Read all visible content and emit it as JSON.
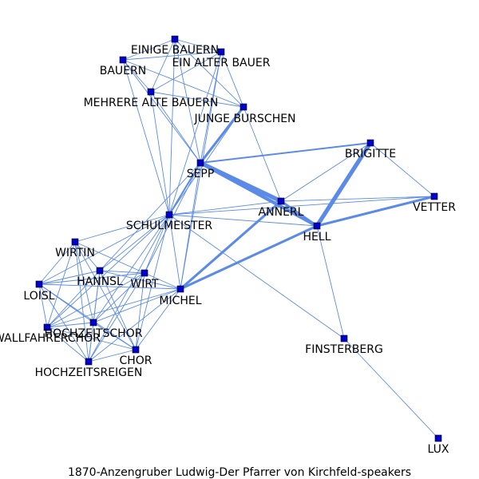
{
  "caption": "1870-Anzengruber_Ludwig-Der_Pfarrer_von_Kirchfeld-speakers",
  "style": {
    "node_color": "#0000cc",
    "node_border": "#000000",
    "edge_color": "#5b8be6"
  },
  "nodes": [
    {
      "id": "EINIGE_BAUERN",
      "label": "EINIGE BAUERN"
    },
    {
      "id": "EIN_ALTER_BAUER",
      "label": "EIN ALTER BAUER"
    },
    {
      "id": "BAUERN",
      "label": "BAUERN"
    },
    {
      "id": "MEHRERE_ALTE_BAUERN",
      "label": "MEHRERE ALTE BAUERN"
    },
    {
      "id": "JUNGE_BURSCHEN",
      "label": "JUNGE BURSCHEN"
    },
    {
      "id": "SEPP",
      "label": "SEPP"
    },
    {
      "id": "BRIGITTE",
      "label": "BRIGITTE"
    },
    {
      "id": "ANNERL",
      "label": "ANNERL"
    },
    {
      "id": "VETTER",
      "label": "VETTER"
    },
    {
      "id": "HELL",
      "label": "HELL"
    },
    {
      "id": "SCHULMEISTER",
      "label": "SCHULMEISTER"
    },
    {
      "id": "WIRTIN",
      "label": "WIRTIN"
    },
    {
      "id": "HANNSL",
      "label": "HANNSL"
    },
    {
      "id": "WIRT",
      "label": "WIRT"
    },
    {
      "id": "LOISL",
      "label": "LOISL"
    },
    {
      "id": "MICHEL",
      "label": "MICHEL"
    },
    {
      "id": "HOCHZEITSCHOR",
      "label": "HOCHZEITSCHOR"
    },
    {
      "id": "WALLFAHRERCHOR",
      "label": "WALLFAHRERCHOR"
    },
    {
      "id": "CHOR",
      "label": "CHOR"
    },
    {
      "id": "HOCHZEITSREIGEN",
      "label": "HOCHZEITSREIGEN"
    },
    {
      "id": "FINSTERBERG",
      "label": "FINSTERBERG"
    },
    {
      "id": "LUX",
      "label": "LUX"
    }
  ],
  "edges": [
    {
      "source": "EINIGE_BAUERN",
      "target": "EIN_ALTER_BAUER",
      "weight": 1
    },
    {
      "source": "EINIGE_BAUERN",
      "target": "BAUERN",
      "weight": 1
    },
    {
      "source": "EINIGE_BAUERN",
      "target": "MEHRERE_ALTE_BAUERN",
      "weight": 1
    },
    {
      "source": "EINIGE_BAUERN",
      "target": "JUNGE_BURSCHEN",
      "weight": 1
    },
    {
      "source": "EINIGE_BAUERN",
      "target": "SEPP",
      "weight": 1
    },
    {
      "source": "EINIGE_BAUERN",
      "target": "SCHULMEISTER",
      "weight": 1
    },
    {
      "source": "EIN_ALTER_BAUER",
      "target": "BAUERN",
      "weight": 1
    },
    {
      "source": "EIN_ALTER_BAUER",
      "target": "MEHRERE_ALTE_BAUERN",
      "weight": 1
    },
    {
      "source": "EIN_ALTER_BAUER",
      "target": "JUNGE_BURSCHEN",
      "weight": 1
    },
    {
      "source": "EIN_ALTER_BAUER",
      "target": "SEPP",
      "weight": 1
    },
    {
      "source": "EIN_ALTER_BAUER",
      "target": "SCHULMEISTER",
      "weight": 1
    },
    {
      "source": "EIN_ALTER_BAUER",
      "target": "MICHEL",
      "weight": 1
    },
    {
      "source": "BAUERN",
      "target": "MEHRERE_ALTE_BAUERN",
      "weight": 1
    },
    {
      "source": "BAUERN",
      "target": "JUNGE_BURSCHEN",
      "weight": 1
    },
    {
      "source": "BAUERN",
      "target": "SEPP",
      "weight": 1
    },
    {
      "source": "BAUERN",
      "target": "SCHULMEISTER",
      "weight": 1
    },
    {
      "source": "MEHRERE_ALTE_BAUERN",
      "target": "JUNGE_BURSCHEN",
      "weight": 1
    },
    {
      "source": "MEHRERE_ALTE_BAUERN",
      "target": "SEPP",
      "weight": 1
    },
    {
      "source": "MEHRERE_ALTE_BAUERN",
      "target": "SCHULMEISTER",
      "weight": 1
    },
    {
      "source": "JUNGE_BURSCHEN",
      "target": "SEPP",
      "weight": 3
    },
    {
      "source": "JUNGE_BURSCHEN",
      "target": "SCHULMEISTER",
      "weight": 1
    },
    {
      "source": "JUNGE_BURSCHEN",
      "target": "ANNERL",
      "weight": 1
    },
    {
      "source": "SEPP",
      "target": "ANNERL",
      "weight": 5
    },
    {
      "source": "SEPP",
      "target": "HELL",
      "weight": 4
    },
    {
      "source": "SEPP",
      "target": "BRIGITTE",
      "weight": 2
    },
    {
      "source": "SEPP",
      "target": "SCHULMEISTER",
      "weight": 2
    },
    {
      "source": "SEPP",
      "target": "MICHEL",
      "weight": 1
    },
    {
      "source": "SEPP",
      "target": "WIRT",
      "weight": 1
    },
    {
      "source": "SEPP",
      "target": "HANNSL",
      "weight": 1
    },
    {
      "source": "BRIGITTE",
      "target": "HELL",
      "weight": 5
    },
    {
      "source": "BRIGITTE",
      "target": "ANNERL",
      "weight": 1
    },
    {
      "source": "BRIGITTE",
      "target": "VETTER",
      "weight": 1
    },
    {
      "source": "ANNERL",
      "target": "HELL",
      "weight": 3
    },
    {
      "source": "ANNERL",
      "target": "VETTER",
      "weight": 1
    },
    {
      "source": "ANNERL",
      "target": "MICHEL",
      "weight": 3
    },
    {
      "source": "ANNERL",
      "target": "SCHULMEISTER",
      "weight": 1
    },
    {
      "source": "VETTER",
      "target": "HELL",
      "weight": 3
    },
    {
      "source": "VETTER",
      "target": "SCHULMEISTER",
      "weight": 1
    },
    {
      "source": "HELL",
      "target": "MICHEL",
      "weight": 3
    },
    {
      "source": "HELL",
      "target": "SCHULMEISTER",
      "weight": 1
    },
    {
      "source": "HELL",
      "target": "FINSTERBERG",
      "weight": 1
    },
    {
      "source": "SCHULMEISTER",
      "target": "WIRTIN",
      "weight": 1
    },
    {
      "source": "SCHULMEISTER",
      "target": "HANNSL",
      "weight": 1
    },
    {
      "source": "SCHULMEISTER",
      "target": "WIRT",
      "weight": 1
    },
    {
      "source": "SCHULMEISTER",
      "target": "LOISL",
      "weight": 1
    },
    {
      "source": "SCHULMEISTER",
      "target": "MICHEL",
      "weight": 1
    },
    {
      "source": "SCHULMEISTER",
      "target": "FINSTERBERG",
      "weight": 1
    },
    {
      "source": "SCHULMEISTER",
      "target": "HOCHZEITSCHOR",
      "weight": 1
    },
    {
      "source": "SCHULMEISTER",
      "target": "CHOR",
      "weight": 1
    },
    {
      "source": "SCHULMEISTER",
      "target": "HOCHZEITSREIGEN",
      "weight": 1
    },
    {
      "source": "SCHULMEISTER",
      "target": "WALLFAHRERCHOR",
      "weight": 1
    },
    {
      "source": "WIRTIN",
      "target": "HANNSL",
      "weight": 1
    },
    {
      "source": "WIRTIN",
      "target": "WIRT",
      "weight": 1
    },
    {
      "source": "WIRTIN",
      "target": "LOISL",
      "weight": 1
    },
    {
      "source": "WIRTIN",
      "target": "HOCHZEITSCHOR",
      "weight": 1
    },
    {
      "source": "WIRTIN",
      "target": "WALLFAHRERCHOR",
      "weight": 1
    },
    {
      "source": "WIRTIN",
      "target": "CHOR",
      "weight": 1
    },
    {
      "source": "WIRTIN",
      "target": "HOCHZEITSREIGEN",
      "weight": 1
    },
    {
      "source": "HANNSL",
      "target": "WIRT",
      "weight": 1
    },
    {
      "source": "HANNSL",
      "target": "LOISL",
      "weight": 1
    },
    {
      "source": "HANNSL",
      "target": "MICHEL",
      "weight": 1
    },
    {
      "source": "HANNSL",
      "target": "HOCHZEITSCHOR",
      "weight": 1
    },
    {
      "source": "HANNSL",
      "target": "WALLFAHRERCHOR",
      "weight": 1
    },
    {
      "source": "HANNSL",
      "target": "CHOR",
      "weight": 1
    },
    {
      "source": "HANNSL",
      "target": "HOCHZEITSREIGEN",
      "weight": 1
    },
    {
      "source": "WIRT",
      "target": "LOISL",
      "weight": 1
    },
    {
      "source": "WIRT",
      "target": "MICHEL",
      "weight": 1
    },
    {
      "source": "WIRT",
      "target": "HOCHZEITSCHOR",
      "weight": 1
    },
    {
      "source": "WIRT",
      "target": "WALLFAHRERCHOR",
      "weight": 1
    },
    {
      "source": "WIRT",
      "target": "CHOR",
      "weight": 1
    },
    {
      "source": "WIRT",
      "target": "HOCHZEITSREIGEN",
      "weight": 1
    },
    {
      "source": "LOISL",
      "target": "MICHEL",
      "weight": 1
    },
    {
      "source": "LOISL",
      "target": "HOCHZEITSCHOR",
      "weight": 1
    },
    {
      "source": "LOISL",
      "target": "WALLFAHRERCHOR",
      "weight": 1
    },
    {
      "source": "LOISL",
      "target": "CHOR",
      "weight": 1
    },
    {
      "source": "LOISL",
      "target": "HOCHZEITSREIGEN",
      "weight": 1
    },
    {
      "source": "MICHEL",
      "target": "HOCHZEITSCHOR",
      "weight": 1
    },
    {
      "source": "MICHEL",
      "target": "WALLFAHRERCHOR",
      "weight": 1
    },
    {
      "source": "MICHEL",
      "target": "CHOR",
      "weight": 1
    },
    {
      "source": "MICHEL",
      "target": "HOCHZEITSREIGEN",
      "weight": 1
    },
    {
      "source": "HOCHZEITSCHOR",
      "target": "WALLFAHRERCHOR",
      "weight": 1
    },
    {
      "source": "HOCHZEITSCHOR",
      "target": "CHOR",
      "weight": 1
    },
    {
      "source": "HOCHZEITSCHOR",
      "target": "HOCHZEITSREIGEN",
      "weight": 1
    },
    {
      "source": "WALLFAHRERCHOR",
      "target": "CHOR",
      "weight": 1
    },
    {
      "source": "WALLFAHRERCHOR",
      "target": "HOCHZEITSREIGEN",
      "weight": 1
    },
    {
      "source": "CHOR",
      "target": "HOCHZEITSREIGEN",
      "weight": 1
    },
    {
      "source": "FINSTERBERG",
      "target": "LUX",
      "weight": 1
    }
  ]
}
